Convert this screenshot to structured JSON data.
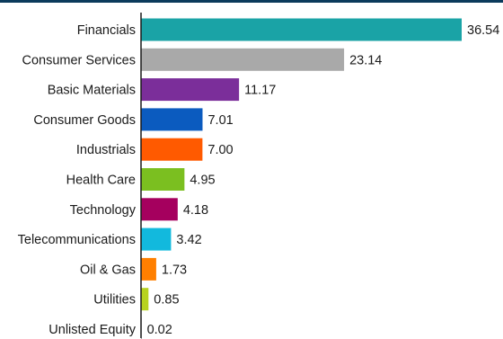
{
  "colors": {
    "top_rule": "#0b3a5c",
    "axis": "#1a1a1a",
    "text": "#1a1a1a"
  },
  "chart_data": {
    "type": "bar",
    "orientation": "horizontal",
    "title": "",
    "xlabel": "",
    "ylabel": "",
    "xlim": [
      0,
      36.54
    ],
    "grid": false,
    "categories": [
      "Financials",
      "Consumer Services",
      "Basic Materials",
      "Consumer Goods",
      "Industrials",
      "Health Care",
      "Technology",
      "Telecommunications",
      "Oil & Gas",
      "Utilities",
      "Unlisted Equity"
    ],
    "values": [
      36.54,
      23.14,
      11.17,
      7.01,
      7.0,
      4.95,
      4.18,
      3.42,
      1.73,
      0.85,
      0.02
    ],
    "value_labels": [
      "36.54",
      "23.14",
      "11.17",
      "7.01",
      "7.00",
      "4.95",
      "4.18",
      "3.42",
      "1.73",
      "0.85",
      "0.02"
    ],
    "bar_colors": [
      "#1aa3a6",
      "#a9a9a9",
      "#7b2e9a",
      "#0b5bbf",
      "#ff5a00",
      "#7bbf20",
      "#a5005e",
      "#12b9dd",
      "#ff7f00",
      "#b7d21f",
      "#6b6b6b"
    ]
  }
}
